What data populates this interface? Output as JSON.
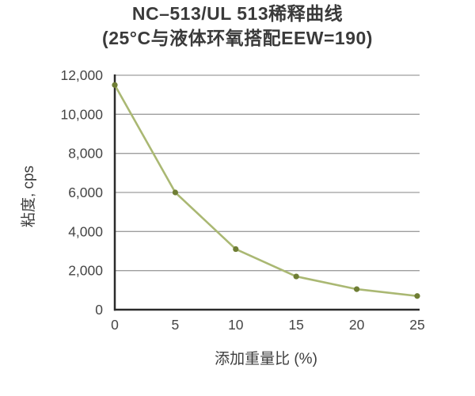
{
  "figure": {
    "title_line1": "NC–513/UL 513稀释曲线",
    "title_line2": "(25°C与液体环氧搭配EEW=190)"
  },
  "chart_data": {
    "type": "line",
    "title": "NC–513/UL 513稀释曲线 (25°C与液体环氧搭配EEW=190)",
    "x": [
      0,
      5,
      10,
      15,
      20,
      25
    ],
    "series": [
      {
        "name": "粘度",
        "values": [
          11500,
          6000,
          3100,
          1700,
          1050,
          700
        ]
      }
    ],
    "xlabel": "添加重量比 (%)",
    "ylabel": "粘度, cps",
    "xlim": [
      0,
      25
    ],
    "ylim": [
      0,
      12000
    ],
    "x_ticks": [
      0,
      5,
      10,
      15,
      20,
      25
    ],
    "y_ticks": [
      0,
      2000,
      4000,
      6000,
      8000,
      10000,
      12000
    ],
    "grid": "horizontal",
    "legend": "none",
    "colors": {
      "line": "#aab873",
      "marker": "#6f7e35",
      "axis": "#2b2b2b",
      "grid": "#9e9e9e",
      "tick_text": "#454545",
      "title_text": "#3a3a3a",
      "background": "#ffffff"
    }
  }
}
